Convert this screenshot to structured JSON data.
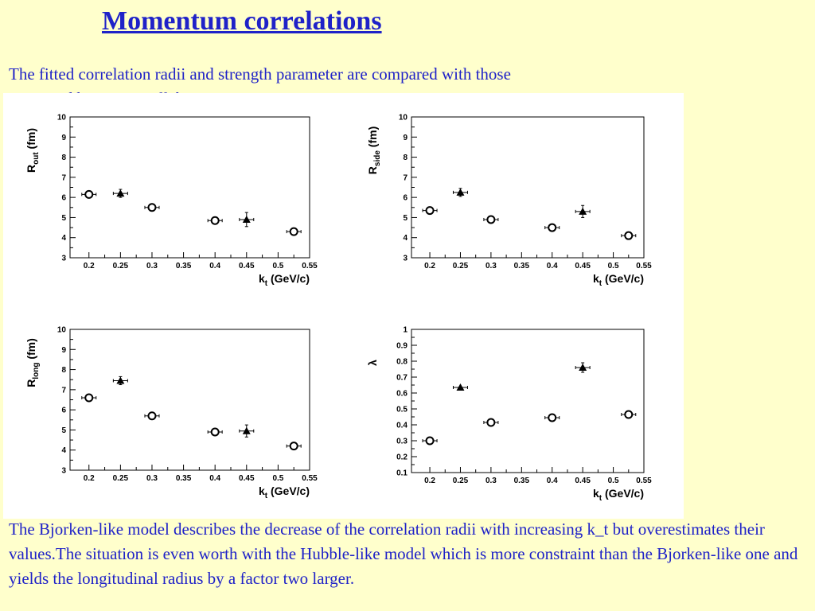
{
  "slide": {
    "title": "Momentum correlations",
    "intro": "The fitted correlation radii and strength parameter are compared with those measured by STAR collaboration",
    "conclusion": "The Bjorken-like model describes the decrease of the correlation radii with increasing k_t but overestimates their values.The situation is even worth with the Hubble-like model which is more constraint than the Bjorken-like one and yields the longitudinal radius by a factor two larger."
  },
  "chart_data": [
    {
      "type": "scatter",
      "ylabel_main": "R",
      "ylabel_sub": "out",
      "ylabel_unit": " (fm)",
      "xlabel_main": "k",
      "xlabel_sub": "t",
      "xlabel_unit": " (GeV/c)",
      "xlim": [
        0.17,
        0.55
      ],
      "ylim": [
        3,
        10
      ],
      "xticks": [
        0.2,
        0.25,
        0.3,
        0.35,
        0.4,
        0.45,
        0.5,
        0.55
      ],
      "xtick_labels": [
        "0.2",
        "0.25",
        "0.3",
        "0.35",
        "0.4",
        "0.45",
        "0.5",
        "0.55"
      ],
      "yticks": [
        3,
        4,
        5,
        6,
        7,
        8,
        9,
        10
      ],
      "ytick_labels": [
        "3",
        "4",
        "5",
        "6",
        "7",
        "8",
        "9",
        "10"
      ],
      "series": [
        {
          "marker": "circle",
          "x": [
            0.2,
            0.3,
            0.4,
            0.525
          ],
          "y": [
            6.15,
            5.5,
            4.85,
            4.3
          ],
          "yerr": [
            0.1,
            0.1,
            0.1,
            0.1
          ]
        },
        {
          "marker": "triangle",
          "x": [
            0.25,
            0.45
          ],
          "y": [
            6.2,
            4.9
          ],
          "yerr": [
            0.2,
            0.35
          ]
        }
      ]
    },
    {
      "type": "scatter",
      "ylabel_main": "R",
      "ylabel_sub": "side",
      "ylabel_unit": " (fm)",
      "xlabel_main": "k",
      "xlabel_sub": "t",
      "xlabel_unit": " (GeV/c)",
      "xlim": [
        0.17,
        0.55
      ],
      "ylim": [
        3,
        10
      ],
      "xticks": [
        0.2,
        0.25,
        0.3,
        0.35,
        0.4,
        0.45,
        0.5,
        0.55
      ],
      "xtick_labels": [
        "0.2",
        "0.25",
        "0.3",
        "0.35",
        "0.4",
        "0.45",
        "0.5",
        "0.55"
      ],
      "yticks": [
        3,
        4,
        5,
        6,
        7,
        8,
        9,
        10
      ],
      "ytick_labels": [
        "3",
        "4",
        "5",
        "6",
        "7",
        "8",
        "9",
        "10"
      ],
      "series": [
        {
          "marker": "circle",
          "x": [
            0.2,
            0.3,
            0.4,
            0.525
          ],
          "y": [
            5.35,
            4.9,
            4.5,
            4.1
          ],
          "yerr": [
            0.1,
            0.1,
            0.1,
            0.1
          ]
        },
        {
          "marker": "triangle",
          "x": [
            0.25,
            0.45
          ],
          "y": [
            6.25,
            5.3
          ],
          "yerr": [
            0.2,
            0.3
          ]
        }
      ]
    },
    {
      "type": "scatter",
      "ylabel_main": "R",
      "ylabel_sub": "long",
      "ylabel_unit": " (fm)",
      "xlabel_main": "k",
      "xlabel_sub": "t",
      "xlabel_unit": " (GeV/c)",
      "xlim": [
        0.17,
        0.55
      ],
      "ylim": [
        3,
        10
      ],
      "xticks": [
        0.2,
        0.25,
        0.3,
        0.35,
        0.4,
        0.45,
        0.5,
        0.55
      ],
      "xtick_labels": [
        "0.2",
        "0.25",
        "0.3",
        "0.35",
        "0.4",
        "0.45",
        "0.5",
        "0.55"
      ],
      "yticks": [
        3,
        4,
        5,
        6,
        7,
        8,
        9,
        10
      ],
      "ytick_labels": [
        "3",
        "4",
        "5",
        "6",
        "7",
        "8",
        "9",
        "10"
      ],
      "series": [
        {
          "marker": "circle",
          "x": [
            0.2,
            0.3,
            0.4,
            0.525
          ],
          "y": [
            6.6,
            5.7,
            4.9,
            4.2
          ],
          "yerr": [
            0.1,
            0.1,
            0.1,
            0.1
          ]
        },
        {
          "marker": "triangle",
          "x": [
            0.25,
            0.45
          ],
          "y": [
            7.45,
            4.95
          ],
          "yerr": [
            0.2,
            0.3
          ]
        }
      ]
    },
    {
      "type": "scatter",
      "ylabel_main": "λ",
      "ylabel_sub": "",
      "ylabel_unit": "",
      "xlabel_main": "k",
      "xlabel_sub": "t",
      "xlabel_unit": " (GeV/c)",
      "xlim": [
        0.17,
        0.55
      ],
      "ylim": [
        0.1,
        1
      ],
      "xticks": [
        0.2,
        0.25,
        0.3,
        0.35,
        0.4,
        0.45,
        0.5,
        0.55
      ],
      "xtick_labels": [
        "0.2",
        "0.25",
        "0.3",
        "0.35",
        "0.4",
        "0.45",
        "0.5",
        "0.55"
      ],
      "yticks": [
        0.1,
        0.2,
        0.3,
        0.4,
        0.5,
        0.6,
        0.7,
        0.8,
        0.9,
        1
      ],
      "ytick_labels": [
        "0.1",
        "0.2",
        "0.3",
        "0.4",
        "0.5",
        "0.6",
        "0.7",
        "0.8",
        "0.9",
        "1"
      ],
      "series": [
        {
          "marker": "circle",
          "x": [
            0.2,
            0.3,
            0.4,
            0.525
          ],
          "y": [
            0.3,
            0.415,
            0.445,
            0.465
          ],
          "yerr": [
            0.01,
            0.01,
            0.01,
            0.01
          ]
        },
        {
          "marker": "triangle",
          "x": [
            0.25,
            0.45
          ],
          "y": [
            0.635,
            0.76
          ],
          "yerr": [
            0.015,
            0.03
          ]
        }
      ]
    }
  ]
}
